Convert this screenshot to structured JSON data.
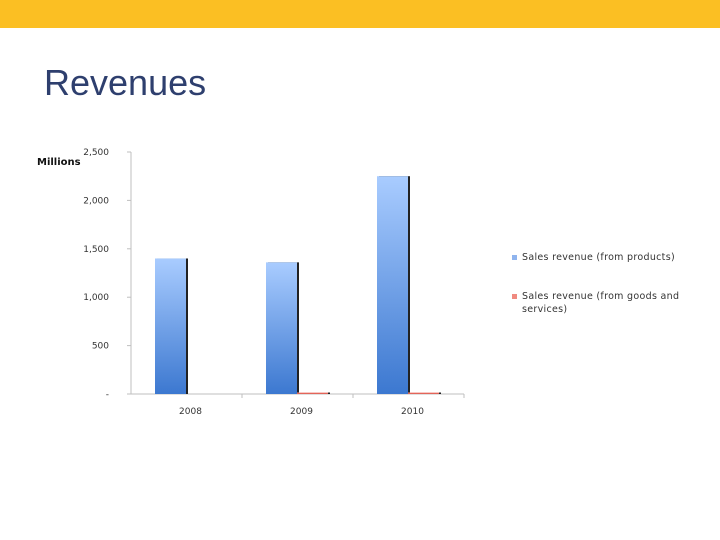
{
  "slide": {
    "title": "Revenues",
    "accent_color": "#fbbf23"
  },
  "chart_data": {
    "type": "bar",
    "title": "",
    "xlabel": "",
    "ylabel": "Millions",
    "ylim": [
      0,
      2500
    ],
    "yticks": [
      0,
      500,
      1000,
      1500,
      2000,
      2500
    ],
    "ytick_labels": [
      "-",
      "500",
      "1,000",
      "1,500",
      "2,000",
      "2,500"
    ],
    "categories": [
      "2008",
      "2009",
      "2010"
    ],
    "series": [
      {
        "name": "Sales revenue (from products)",
        "values": [
          1400,
          1360,
          2250
        ],
        "color": "#5b8fd8"
      },
      {
        "name": "Sales revenue (from goods and services)",
        "values": [
          0,
          10,
          15
        ],
        "color": "#e8564a"
      }
    ],
    "grid": false,
    "legend_position": "right"
  }
}
